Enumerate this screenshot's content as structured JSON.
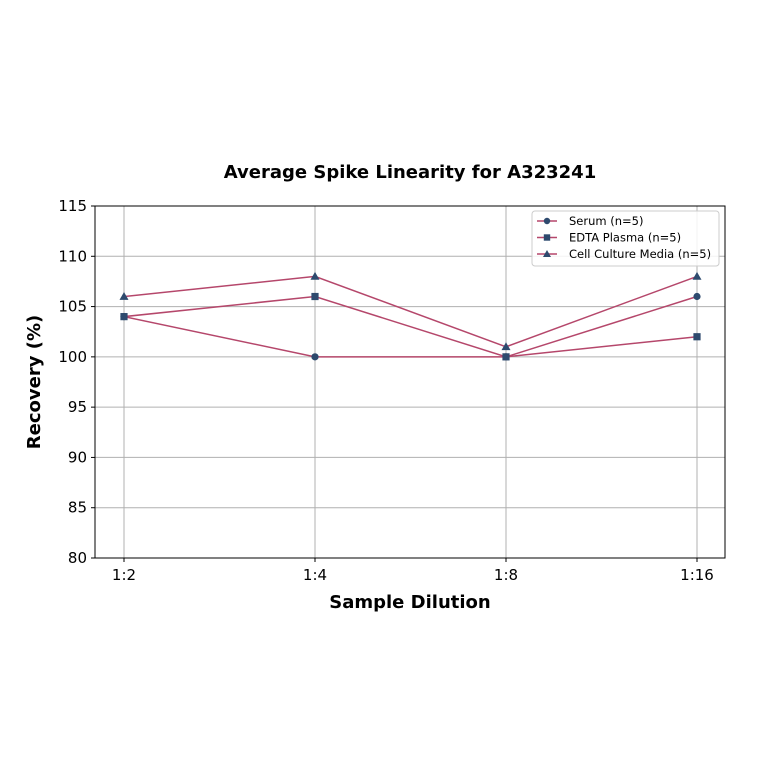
{
  "chart_data": {
    "type": "line",
    "title": "Average Spike Linearity for A323241",
    "xlabel": "Sample Dilution",
    "ylabel": "Recovery (%)",
    "categories": [
      "1:2",
      "1:4",
      "1:8",
      "1:16"
    ],
    "ylim": [
      80,
      115
    ],
    "yticks": [
      80,
      85,
      90,
      95,
      100,
      105,
      110,
      115
    ],
    "grid": true,
    "legend_position": "upper right",
    "series": [
      {
        "name": "Serum (n=5)",
        "marker": "circle",
        "values": [
          104,
          100,
          100,
          106
        ]
      },
      {
        "name": "EDTA Plasma (n=5)",
        "marker": "square",
        "values": [
          104,
          106,
          100,
          102
        ]
      },
      {
        "name": "Cell Culture Media (n=5)",
        "marker": "triangle",
        "values": [
          106,
          108,
          101,
          108
        ]
      }
    ],
    "colors": {
      "line": "#b5476b",
      "marker": "#2e4a6e",
      "grid": "#b0b0b0"
    }
  }
}
